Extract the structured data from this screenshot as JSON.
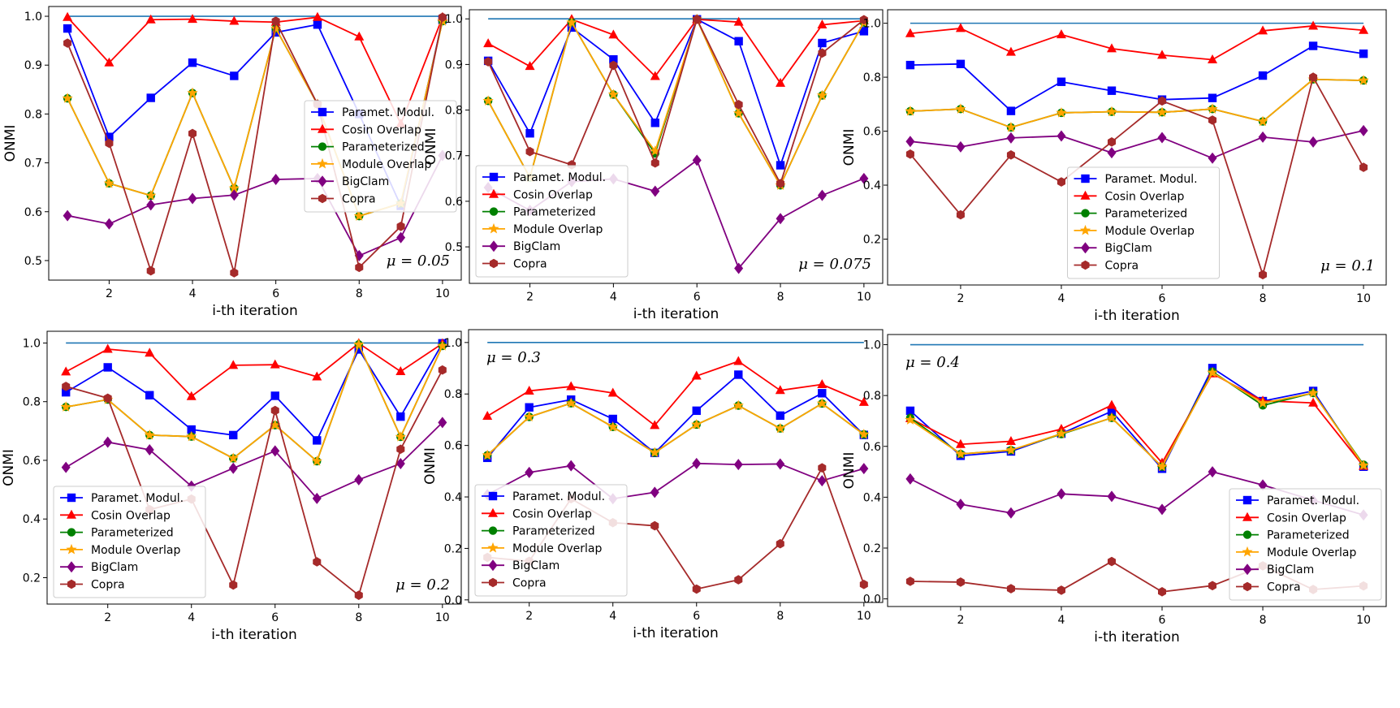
{
  "figure": {
    "series_names": [
      "Paramet. Modul.",
      "Cosin Overlap",
      "Parameterized",
      "Module Overlap",
      "BigClam",
      "Copra"
    ],
    "series_colors": [
      "#0000ff",
      "#ff0000",
      "#008000",
      "#ffa500",
      "#800080",
      "#a52a2a"
    ],
    "series_markers": [
      "square",
      "triangle",
      "circle",
      "star",
      "diamond",
      "hexagon"
    ],
    "reference_color": "#1f77b4"
  },
  "chart_data": [
    {
      "type": "line",
      "title": "",
      "annotation": "μ = 0.05",
      "annotation_position": "bottom-right",
      "xlabel": "i-th iteration",
      "ylabel": "ONMI",
      "x": [
        1,
        2,
        3,
        4,
        5,
        6,
        7,
        8,
        9,
        10
      ],
      "xticks": [
        "2",
        "4",
        "6",
        "8",
        "10"
      ],
      "yticks": [
        "0.5",
        "0.6",
        "0.7",
        "0.8",
        "0.9",
        "1.0"
      ],
      "ylim": [
        0.46,
        1.02
      ],
      "legend_position": "center-right",
      "reference_line": [
        1.0,
        1.0,
        1.0,
        1.0,
        1.0,
        1.0,
        1.0,
        1.0,
        1.0,
        1.0
      ],
      "series": [
        {
          "name": "Paramet. Modul.",
          "values": [
            0.975,
            0.753,
            0.833,
            0.905,
            0.878,
            0.967,
            0.983,
            0.8,
            0.612,
            0.993
          ]
        },
        {
          "name": "Cosin Overlap",
          "values": [
            0.998,
            0.905,
            0.993,
            0.994,
            0.99,
            0.988,
            0.998,
            0.958,
            0.78,
            0.998
          ]
        },
        {
          "name": "Parameterized",
          "values": [
            0.832,
            0.658,
            0.633,
            0.843,
            0.648,
            0.975,
            0.82,
            0.591,
            0.617,
            0.99
          ]
        },
        {
          "name": "Module Overlap",
          "values": [
            0.832,
            0.658,
            0.633,
            0.843,
            0.648,
            0.975,
            0.82,
            0.591,
            0.617,
            0.99
          ]
        },
        {
          "name": "BigClam",
          "values": [
            0.592,
            0.575,
            0.614,
            0.627,
            0.634,
            0.666,
            0.668,
            0.51,
            0.547,
            0.715
          ]
        },
        {
          "name": "Copra",
          "values": [
            0.945,
            0.74,
            0.479,
            0.76,
            0.475,
            0.99,
            0.82,
            0.486,
            0.57,
            0.998
          ]
        }
      ]
    },
    {
      "type": "line",
      "title": "",
      "annotation": "μ = 0.075",
      "annotation_position": "bottom-right",
      "xlabel": "i-th iteration",
      "ylabel": "ONMI",
      "x": [
        1,
        2,
        3,
        4,
        5,
        6,
        7,
        8,
        9,
        10
      ],
      "xticks": [
        "2",
        "4",
        "6",
        "8",
        "10"
      ],
      "yticks": [
        "0.5",
        "0.6",
        "0.7",
        "0.8",
        "0.9",
        "1.0"
      ],
      "ylim": [
        0.42,
        1.02
      ],
      "legend_position": "bottom-left",
      "reference_line": [
        1.0,
        1.0,
        1.0,
        1.0,
        1.0,
        1.0,
        1.0,
        1.0,
        1.0,
        1.0
      ],
      "series": [
        {
          "name": "Paramet. Modul.",
          "values": [
            0.908,
            0.749,
            0.981,
            0.911,
            0.772,
            0.999,
            0.951,
            0.679,
            0.947,
            0.973
          ]
        },
        {
          "name": "Cosin Overlap",
          "values": [
            0.946,
            0.896,
            0.999,
            0.965,
            0.874,
            0.999,
            0.993,
            0.859,
            0.987,
            0.996
          ]
        },
        {
          "name": "Parameterized",
          "values": [
            0.82,
            0.652,
            0.992,
            0.834,
            0.705,
            0.999,
            0.793,
            0.635,
            0.832,
            0.992
          ]
        },
        {
          "name": "Module Overlap",
          "values": [
            0.82,
            0.652,
            0.992,
            0.834,
            0.71,
            0.999,
            0.793,
            0.635,
            0.832,
            0.992
          ]
        },
        {
          "name": "BigClam",
          "values": [
            0.63,
            0.58,
            0.643,
            0.649,
            0.622,
            0.69,
            0.453,
            0.562,
            0.613,
            0.65
          ]
        },
        {
          "name": "Copra",
          "values": [
            0.906,
            0.709,
            0.68,
            0.898,
            0.684,
            0.999,
            0.812,
            0.639,
            0.925,
            0.998
          ]
        }
      ]
    },
    {
      "type": "line",
      "title": "",
      "annotation": "μ = 0.1",
      "annotation_position": "bottom-right",
      "xlabel": "i-th iteration",
      "ylabel": "ONMI",
      "x": [
        1,
        2,
        3,
        4,
        5,
        6,
        7,
        8,
        9,
        10
      ],
      "xticks": [
        "2",
        "4",
        "6",
        "8",
        "10"
      ],
      "yticks": [
        "0.2",
        "0.4",
        "0.6",
        "0.8",
        "1.0"
      ],
      "ylim": [
        0.03,
        1.05
      ],
      "legend_position": "bottom-center",
      "reference_line": [
        1.0,
        1.0,
        1.0,
        1.0,
        1.0,
        1.0,
        1.0,
        1.0,
        1.0,
        1.0
      ],
      "series": [
        {
          "name": "Paramet. Modul.",
          "values": [
            0.845,
            0.849,
            0.675,
            0.783,
            0.75,
            0.717,
            0.723,
            0.806,
            0.916,
            0.887
          ]
        },
        {
          "name": "Cosin Overlap",
          "values": [
            0.962,
            0.981,
            0.893,
            0.958,
            0.906,
            0.882,
            0.865,
            0.972,
            0.99,
            0.974
          ]
        },
        {
          "name": "Parameterized",
          "values": [
            0.674,
            0.682,
            0.614,
            0.668,
            0.672,
            0.67,
            0.682,
            0.636,
            0.792,
            0.788
          ]
        },
        {
          "name": "Module Overlap",
          "values": [
            0.674,
            0.682,
            0.614,
            0.668,
            0.672,
            0.67,
            0.682,
            0.636,
            0.792,
            0.788
          ]
        },
        {
          "name": "BigClam",
          "values": [
            0.562,
            0.542,
            0.575,
            0.582,
            0.52,
            0.576,
            0.5,
            0.578,
            0.56,
            0.602
          ]
        },
        {
          "name": "Copra",
          "values": [
            0.515,
            0.29,
            0.512,
            0.412,
            0.56,
            0.712,
            0.641,
            0.068,
            0.8,
            0.466
          ]
        }
      ]
    },
    {
      "type": "line",
      "title": "",
      "annotation": "μ = 0.2",
      "annotation_position": "bottom-right",
      "xlabel": "i-th iteration",
      "ylabel": "ONMI",
      "x": [
        1,
        2,
        3,
        4,
        5,
        6,
        7,
        8,
        9,
        10
      ],
      "xticks": [
        "2",
        "4",
        "6",
        "8",
        "10"
      ],
      "yticks": [
        "0.2",
        "0.4",
        "0.6",
        "0.8",
        "1.0"
      ],
      "ylim": [
        0.11,
        1.04
      ],
      "legend_position": "bottom-left",
      "reference_line": [
        1.0,
        1.0,
        1.0,
        1.0,
        1.0,
        1.0,
        1.0,
        1.0,
        1.0,
        1.0
      ],
      "series": [
        {
          "name": "Paramet. Modul.",
          "values": [
            0.832,
            0.917,
            0.822,
            0.705,
            0.686,
            0.82,
            0.668,
            0.978,
            0.749,
            0.999
          ]
        },
        {
          "name": "Cosin Overlap",
          "values": [
            0.902,
            0.979,
            0.966,
            0.818,
            0.924,
            0.926,
            0.885,
            0.999,
            0.903,
            0.998
          ]
        },
        {
          "name": "Parameterized",
          "values": [
            0.782,
            0.807,
            0.686,
            0.681,
            0.607,
            0.72,
            0.597,
            0.995,
            0.68,
            0.99
          ]
        },
        {
          "name": "Module Overlap",
          "values": [
            0.782,
            0.807,
            0.686,
            0.681,
            0.607,
            0.72,
            0.597,
            0.995,
            0.68,
            0.99
          ]
        },
        {
          "name": "BigClam",
          "values": [
            0.576,
            0.662,
            0.636,
            0.512,
            0.573,
            0.632,
            0.47,
            0.534,
            0.589,
            0.729
          ]
        },
        {
          "name": "Copra",
          "values": [
            0.852,
            0.812,
            0.432,
            0.468,
            0.175,
            0.77,
            0.254,
            0.14,
            0.638,
            0.908
          ]
        }
      ]
    },
    {
      "type": "line",
      "title": "",
      "annotation": "μ = 0.3",
      "annotation_position": "top-left",
      "xlabel": "i-th iteration",
      "ylabel": "ONMI",
      "x": [
        1,
        2,
        3,
        4,
        5,
        6,
        7,
        8,
        9,
        10
      ],
      "xticks": [
        "2",
        "4",
        "6",
        "8",
        "10"
      ],
      "yticks": [
        "0.0",
        "0.2",
        "0.4",
        "0.6",
        "0.8",
        "1.0"
      ],
      "ylim": [
        -0.01,
        1.05
      ],
      "legend_position": "bottom-left",
      "reference_line": [
        1.0,
        1.0,
        1.0,
        1.0,
        1.0,
        1.0,
        1.0,
        1.0,
        1.0,
        1.0
      ],
      "series": [
        {
          "name": "Paramet. Modul.",
          "values": [
            0.552,
            0.748,
            0.778,
            0.703,
            0.571,
            0.735,
            0.875,
            0.716,
            0.803,
            0.641
          ]
        },
        {
          "name": "Cosin Overlap",
          "values": [
            0.714,
            0.812,
            0.829,
            0.804,
            0.678,
            0.87,
            0.927,
            0.814,
            0.837,
            0.768
          ]
        },
        {
          "name": "Parameterized",
          "values": [
            0.562,
            0.711,
            0.764,
            0.672,
            0.572,
            0.681,
            0.755,
            0.666,
            0.763,
            0.643
          ]
        },
        {
          "name": "Module Overlap",
          "values": [
            0.562,
            0.711,
            0.764,
            0.672,
            0.572,
            0.681,
            0.755,
            0.666,
            0.763,
            0.643
          ]
        },
        {
          "name": "BigClam",
          "values": [
            0.409,
            0.495,
            0.521,
            0.393,
            0.418,
            0.53,
            0.526,
            0.528,
            0.463,
            0.51
          ]
        },
        {
          "name": "Copra",
          "values": [
            0.165,
            0.15,
            0.393,
            0.3,
            0.288,
            0.042,
            0.078,
            0.218,
            0.513,
            0.06
          ]
        }
      ]
    },
    {
      "type": "line",
      "title": "",
      "annotation": "μ = 0.4",
      "annotation_position": "top-left",
      "xlabel": "i-th iteration",
      "ylabel": "ONMI",
      "x": [
        1,
        2,
        3,
        4,
        5,
        6,
        7,
        8,
        9,
        10
      ],
      "xticks": [
        "2",
        "4",
        "6",
        "8",
        "10"
      ],
      "yticks": [
        "0.0",
        "0.2",
        "0.4",
        "0.6",
        "0.8",
        "1.0"
      ],
      "ylim": [
        -0.03,
        1.04
      ],
      "legend_position": "bottom-right",
      "reference_line": [
        1.0,
        1.0,
        1.0,
        1.0,
        1.0,
        1.0,
        1.0,
        1.0,
        1.0,
        1.0
      ],
      "series": [
        {
          "name": "Paramet. Modul.",
          "values": [
            0.74,
            0.563,
            0.58,
            0.65,
            0.738,
            0.512,
            0.908,
            0.778,
            0.818,
            0.52
          ]
        },
        {
          "name": "Cosin Overlap",
          "values": [
            0.71,
            0.608,
            0.62,
            0.668,
            0.762,
            0.535,
            0.886,
            0.779,
            0.771,
            0.522
          ]
        },
        {
          "name": "Parameterized",
          "values": [
            0.712,
            0.57,
            0.585,
            0.648,
            0.712,
            0.52,
            0.894,
            0.761,
            0.81,
            0.528
          ]
        },
        {
          "name": "Module Overlap",
          "values": [
            0.704,
            0.57,
            0.585,
            0.65,
            0.712,
            0.52,
            0.89,
            0.77,
            0.81,
            0.525
          ]
        },
        {
          "name": "BigClam",
          "values": [
            0.472,
            0.372,
            0.338,
            0.413,
            0.403,
            0.352,
            0.5,
            0.448,
            0.388,
            0.33
          ]
        },
        {
          "name": "Copra",
          "values": [
            0.069,
            0.066,
            0.04,
            0.034,
            0.147,
            0.028,
            0.052,
            0.13,
            0.037,
            0.051
          ]
        }
      ]
    }
  ]
}
